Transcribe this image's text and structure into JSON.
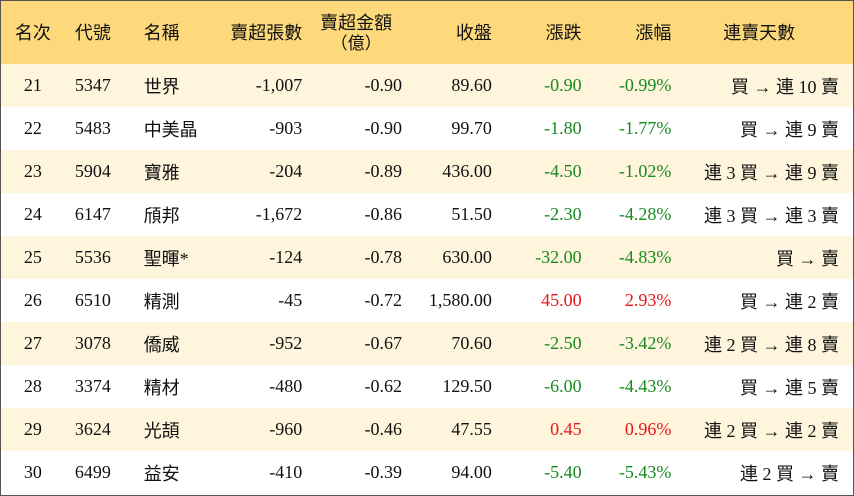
{
  "table": {
    "header": [
      "名次",
      "代號",
      "名稱",
      "賣超張數",
      "賣超金額",
      "收盤",
      "漲跌",
      "漲幅",
      "連賣天數"
    ],
    "header_note": "（億）",
    "rows": [
      [
        "21",
        "5347",
        "世界",
        "-1,007",
        "-0.90",
        "89.60",
        "-0.90",
        "-0.99%",
        "買 → 連 10 賣"
      ],
      [
        "22",
        "5483",
        "中美晶",
        "-903",
        "-0.90",
        "99.70",
        "-1.80",
        "-1.77%",
        "買 → 連 9 賣"
      ],
      [
        "23",
        "5904",
        "寶雅",
        "-204",
        "-0.89",
        "436.00",
        "-4.50",
        "-1.02%",
        "連 3 買 → 連 9 賣"
      ],
      [
        "24",
        "6147",
        "頎邦",
        "-1,672",
        "-0.86",
        "51.50",
        "-2.30",
        "-4.28%",
        "連 3 買 → 連 3 賣"
      ],
      [
        "25",
        "5536",
        "聖暉*",
        "-124",
        "-0.78",
        "630.00",
        "-32.00",
        "-4.83%",
        "買 → 賣"
      ],
      [
        "26",
        "6510",
        "精測",
        "-45",
        "-0.72",
        "1,580.00",
        "45.00",
        "2.93%",
        "買 → 連 2 賣"
      ],
      [
        "27",
        "3078",
        "僑威",
        "-952",
        "-0.67",
        "70.60",
        "-2.50",
        "-3.42%",
        "連 2 買 → 連 8 賣"
      ],
      [
        "28",
        "3374",
        "精材",
        "-480",
        "-0.62",
        "129.50",
        "-6.00",
        "-4.43%",
        "買 → 連 5 賣"
      ],
      [
        "29",
        "3624",
        "光頡",
        "-960",
        "-0.46",
        "47.55",
        "0.45",
        "0.96%",
        "連 2 買 → 連 2 賣"
      ],
      [
        "30",
        "6499",
        "益安",
        "-410",
        "-0.39",
        "94.00",
        "-5.40",
        "-5.43%",
        "連 2 買 → 賣"
      ]
    ],
    "header_color": "#fdd97c",
    "stripe_color": "#fef5dc",
    "up_color": "#e8161b",
    "down_color": "#178a1f"
  }
}
